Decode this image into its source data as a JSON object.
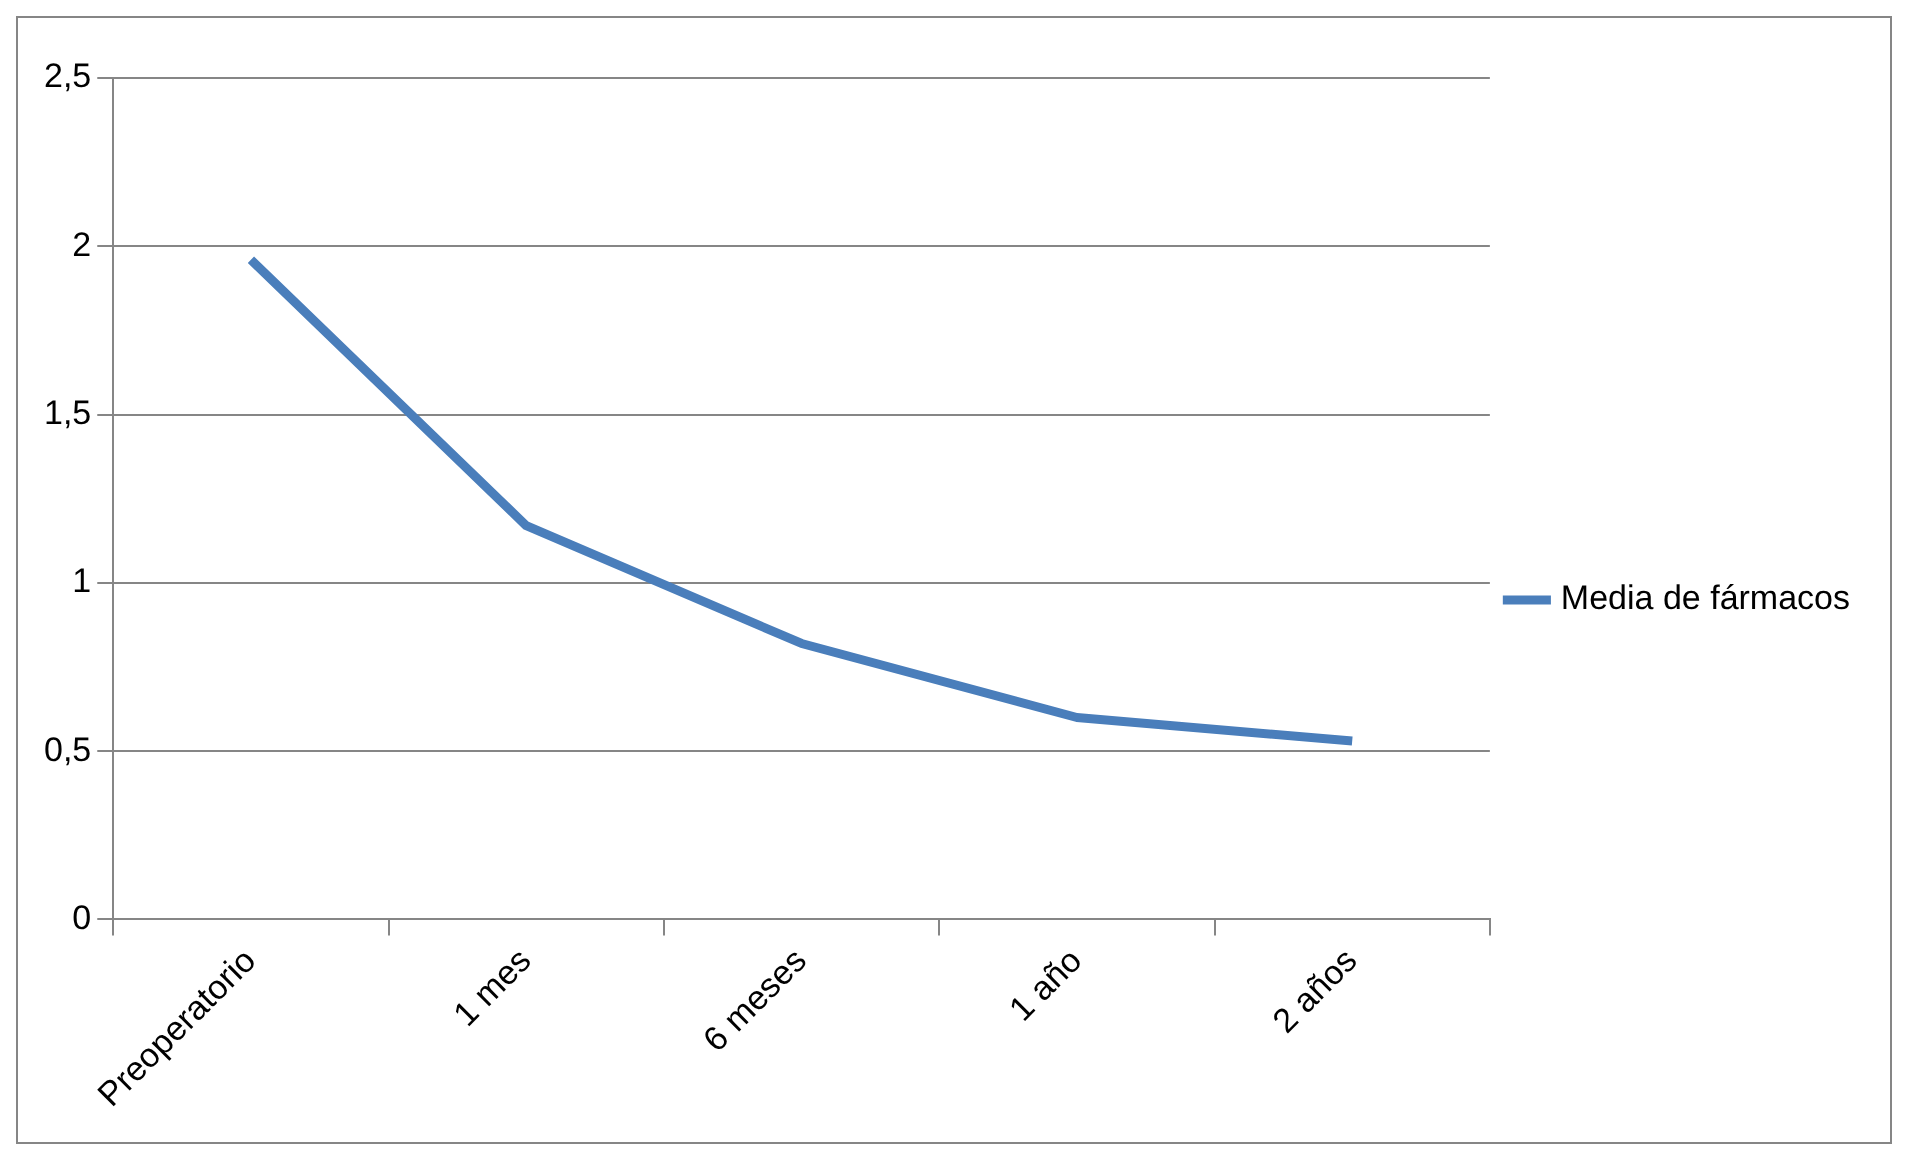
{
  "chart_data": {
    "type": "line",
    "categories": [
      "Preoperatorio",
      "1 mes",
      "6 meses",
      "1 año",
      "2 años"
    ],
    "series": [
      {
        "name": "Media de fármacos",
        "color": "#4a7ebb",
        "values": [
          1.96,
          1.17,
          0.82,
          0.6,
          0.53
        ]
      }
    ],
    "ylim": [
      0,
      2.5
    ],
    "yticks": [
      {
        "value": 0,
        "label": "0"
      },
      {
        "value": 0.5,
        "label": "0,5"
      },
      {
        "value": 1,
        "label": "1"
      },
      {
        "value": 1.5,
        "label": "1,5"
      },
      {
        "value": 2,
        "label": "2"
      },
      {
        "value": 2.5,
        "label": "2,5"
      }
    ],
    "grid": "y",
    "legend": "right",
    "marker": "none",
    "line_style": "solid"
  }
}
